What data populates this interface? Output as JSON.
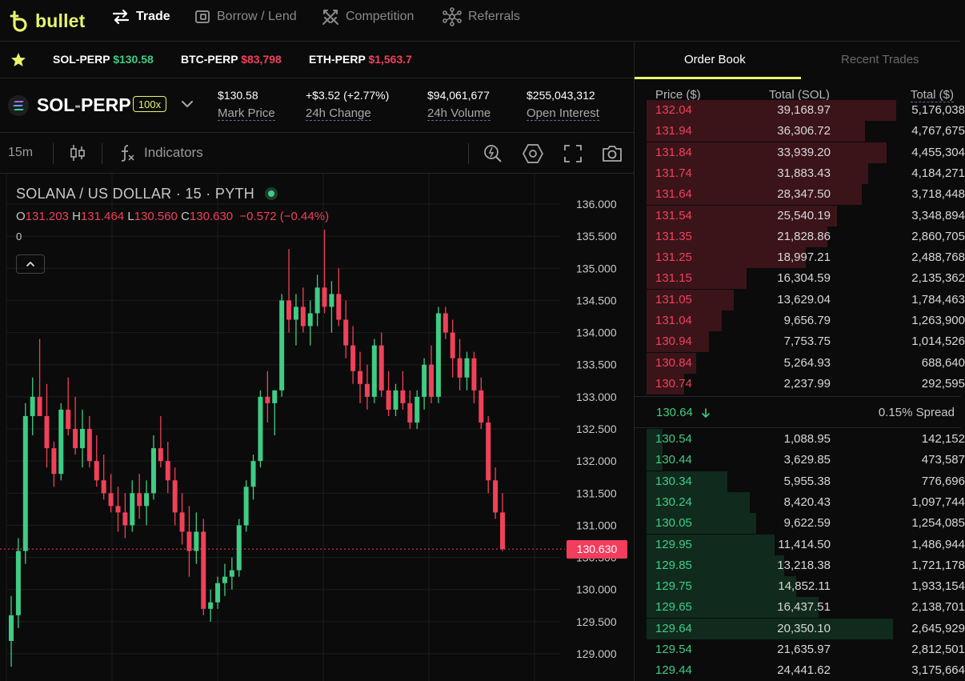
{
  "app": {
    "brand": "bullet"
  },
  "nav": {
    "items": [
      {
        "label": "Trade",
        "icon": "swap-arrows-icon",
        "active": true
      },
      {
        "label": "Borrow / Lend",
        "icon": "wallet-icon",
        "active": false
      },
      {
        "label": "Competition",
        "icon": "crossed-swords-icon",
        "active": false
      },
      {
        "label": "Referrals",
        "icon": "network-icon",
        "active": false
      }
    ]
  },
  "ticker": {
    "items": [
      {
        "symbol": "SOL-PERP",
        "price": "$130.58",
        "dir": "up"
      },
      {
        "symbol": "BTC-PERP",
        "price": "$83,798",
        "dir": "down"
      },
      {
        "symbol": "ETH-PERP",
        "price": "$1,563.7",
        "dir": "down"
      }
    ]
  },
  "market": {
    "symbol_base": "SOL",
    "symbol_sep": "-",
    "symbol_quote": "PERP",
    "leverage": "100x",
    "stats": [
      {
        "value": "$130.58",
        "label": "Mark Price",
        "dir": "neutral"
      },
      {
        "value": "+$3.52 (+2.77%)",
        "label": "24h Change",
        "dir": "up"
      },
      {
        "value": "$94,061,677",
        "label": "24h Volume",
        "dir": "neutral"
      },
      {
        "value": "$255,043,312",
        "label": "Open Interest",
        "dir": "neutral"
      }
    ]
  },
  "toolbar": {
    "interval": "15m",
    "indicators_label": "Indicators"
  },
  "chart": {
    "title": "SOLANA / US DOLLAR · 15 · PYTH",
    "ohlc": {
      "o_label": "O",
      "o": "131.203",
      "h_label": "H",
      "h": "131.464",
      "l_label": "L",
      "l": "130.560",
      "c_label": "C",
      "c": "130.630",
      "change": "−0.572 (−0.44%)"
    },
    "volume_label": "0",
    "price_tag": "130.630",
    "colors": {
      "up": "#3fcc85",
      "down": "#f0415a"
    }
  },
  "chart_data": {
    "type": "candlestick",
    "title": "SOLANA / US DOLLAR · 15 · PYTH",
    "ylim": [
      128.6,
      136.2
    ],
    "y_ticks": [
      "136.000",
      "135.500",
      "135.000",
      "134.500",
      "134.000",
      "133.500",
      "133.000",
      "132.500",
      "132.000",
      "131.500",
      "131.000",
      "130.500",
      "130.000",
      "129.500",
      "129.000"
    ],
    "last_price": 130.63,
    "candles": [
      [
        129.2,
        129.9,
        128.8,
        129.6
      ],
      [
        129.6,
        130.8,
        129.4,
        130.6
      ],
      [
        130.6,
        132.9,
        130.4,
        132.7
      ],
      [
        132.7,
        133.3,
        132.4,
        133.0
      ],
      [
        133.0,
        133.9,
        132.7,
        132.7
      ],
      [
        132.7,
        133.2,
        131.9,
        132.2
      ],
      [
        132.2,
        132.3,
        131.6,
        131.8
      ],
      [
        131.8,
        132.9,
        131.7,
        132.8
      ],
      [
        132.8,
        133.3,
        132.4,
        132.5
      ],
      [
        132.5,
        133.0,
        132.1,
        132.2
      ],
      [
        132.2,
        132.8,
        131.9,
        132.5
      ],
      [
        132.5,
        132.7,
        131.9,
        132.0
      ],
      [
        132.0,
        132.4,
        131.6,
        131.7
      ],
      [
        131.7,
        132.1,
        131.4,
        131.5
      ],
      [
        131.5,
        131.8,
        131.2,
        131.3
      ],
      [
        131.3,
        131.6,
        130.9,
        131.2
      ],
      [
        131.2,
        131.5,
        130.8,
        131.0
      ],
      [
        131.0,
        131.7,
        130.9,
        131.5
      ],
      [
        131.5,
        131.8,
        131.1,
        131.3
      ],
      [
        131.3,
        131.7,
        131.0,
        131.5
      ],
      [
        131.5,
        132.4,
        131.4,
        132.2
      ],
      [
        132.2,
        132.7,
        131.9,
        132.0
      ],
      [
        132.0,
        132.3,
        131.5,
        131.7
      ],
      [
        131.7,
        131.9,
        131.0,
        131.2
      ],
      [
        131.2,
        131.5,
        130.7,
        130.9
      ],
      [
        130.9,
        131.3,
        130.2,
        130.6
      ],
      [
        130.6,
        131.2,
        130.4,
        130.9
      ],
      [
        130.9,
        131.1,
        129.6,
        129.7
      ],
      [
        129.7,
        130.0,
        129.5,
        129.8
      ],
      [
        129.8,
        130.2,
        129.7,
        130.1
      ],
      [
        130.1,
        130.4,
        129.9,
        130.2
      ],
      [
        130.2,
        130.5,
        130.0,
        130.3
      ],
      [
        130.3,
        131.1,
        130.2,
        131.0
      ],
      [
        131.0,
        131.7,
        130.9,
        131.6
      ],
      [
        131.6,
        132.1,
        131.4,
        132.0
      ],
      [
        132.0,
        133.1,
        131.9,
        133.0
      ],
      [
        133.0,
        133.4,
        132.6,
        132.9
      ],
      [
        132.9,
        133.1,
        132.4,
        133.1
      ],
      [
        133.1,
        134.6,
        133.0,
        134.5
      ],
      [
        134.5,
        135.3,
        134.0,
        134.2
      ],
      [
        134.2,
        134.6,
        133.8,
        134.4
      ],
      [
        134.4,
        134.7,
        134.0,
        134.1
      ],
      [
        134.1,
        134.5,
        133.8,
        134.3
      ],
      [
        134.3,
        134.9,
        134.1,
        134.7
      ],
      [
        134.7,
        135.6,
        134.3,
        134.4
      ],
      [
        134.4,
        134.8,
        134.0,
        134.6
      ],
      [
        134.6,
        135.0,
        134.1,
        134.2
      ],
      [
        134.2,
        134.5,
        133.6,
        133.8
      ],
      [
        133.8,
        134.1,
        133.2,
        133.4
      ],
      [
        133.4,
        133.7,
        132.9,
        133.2
      ],
      [
        133.2,
        133.5,
        132.8,
        133.0
      ],
      [
        133.0,
        133.9,
        132.9,
        133.8
      ],
      [
        133.8,
        134.0,
        133.0,
        133.1
      ],
      [
        133.1,
        133.4,
        132.7,
        132.8
      ],
      [
        132.8,
        133.2,
        132.7,
        133.1
      ],
      [
        133.1,
        133.4,
        132.8,
        132.9
      ],
      [
        132.9,
        133.1,
        132.5,
        132.6
      ],
      [
        132.6,
        133.1,
        132.5,
        133.0
      ],
      [
        133.0,
        133.6,
        132.8,
        133.5
      ],
      [
        133.5,
        133.8,
        132.9,
        133.0
      ],
      [
        133.0,
        134.4,
        132.9,
        134.3
      ],
      [
        134.3,
        134.4,
        133.9,
        134.0
      ],
      [
        134.0,
        134.2,
        133.3,
        133.6
      ],
      [
        133.6,
        133.9,
        133.1,
        133.3
      ],
      [
        133.3,
        133.7,
        133.1,
        133.6
      ],
      [
        133.6,
        133.7,
        132.9,
        133.1
      ],
      [
        133.1,
        133.3,
        132.5,
        132.6
      ],
      [
        132.6,
        132.7,
        131.5,
        131.7
      ],
      [
        131.7,
        131.9,
        131.1,
        131.2
      ],
      [
        131.2,
        131.5,
        130.6,
        130.63
      ]
    ]
  },
  "book": {
    "tabs": [
      "Order Book",
      "Recent Trades"
    ],
    "headers": [
      "Price ($)",
      "Total (SOL)",
      "Total ($)"
    ],
    "asks": [
      {
        "price": "132.04",
        "total_sol": "39,168.97",
        "total_usd": "5,176,038",
        "depth": 0.8
      },
      {
        "price": "131.94",
        "total_sol": "36,306.72",
        "total_usd": "4,767,675",
        "depth": 0.7
      },
      {
        "price": "131.84",
        "total_sol": "33,939.20",
        "total_usd": "4,455,304",
        "depth": 0.77
      },
      {
        "price": "131.74",
        "total_sol": "31,883.43",
        "total_usd": "4,184,271",
        "depth": 0.71
      },
      {
        "price": "131.64",
        "total_sol": "28,347.50",
        "total_usd": "3,718,448",
        "depth": 0.69
      },
      {
        "price": "131.54",
        "total_sol": "25,540.19",
        "total_usd": "3,348,894",
        "depth": 0.61
      },
      {
        "price": "131.35",
        "total_sol": "21,828.86",
        "total_usd": "2,860,705",
        "depth": 0.58
      },
      {
        "price": "131.25",
        "total_sol": "18,997.21",
        "total_usd": "2,488,768",
        "depth": 0.51
      },
      {
        "price": "131.15",
        "total_sol": "16,304.59",
        "total_usd": "2,135,362",
        "depth": 0.32
      },
      {
        "price": "131.05",
        "total_sol": "13,629.04",
        "total_usd": "1,784,463",
        "depth": 0.28
      },
      {
        "price": "131.04",
        "total_sol": "9,656.79",
        "total_usd": "1,263,900",
        "depth": 0.24
      },
      {
        "price": "130.94",
        "total_sol": "7,753.75",
        "total_usd": "1,014,526",
        "depth": 0.2
      },
      {
        "price": "130.84",
        "total_sol": "5,264.93",
        "total_usd": "688,640",
        "depth": 0.16
      },
      {
        "price": "130.74",
        "total_sol": "2,237.99",
        "total_usd": "292,595",
        "depth": 0.12
      }
    ],
    "mid_price": "130.64",
    "spread": "0.15% Spread",
    "bids": [
      {
        "price": "130.54",
        "total_sol": "1,088.95",
        "total_usd": "142,152",
        "depth": 0.05
      },
      {
        "price": "130.44",
        "total_sol": "3,629.85",
        "total_usd": "473,587",
        "depth": 0.05
      },
      {
        "price": "130.34",
        "total_sol": "5,955.38",
        "total_usd": "776,696",
        "depth": 0.26
      },
      {
        "price": "130.24",
        "total_sol": "8,420.43",
        "total_usd": "1,097,744",
        "depth": 0.33
      },
      {
        "price": "130.05",
        "total_sol": "9,622.59",
        "total_usd": "1,254,085",
        "depth": 0.35
      },
      {
        "price": "129.95",
        "total_sol": "11,414.50",
        "total_usd": "1,486,944",
        "depth": 0.41
      },
      {
        "price": "129.85",
        "total_sol": "13,218.38",
        "total_usd": "1,721,178",
        "depth": 0.44
      },
      {
        "price": "129.75",
        "total_sol": "14,852.11",
        "total_usd": "1,933,154",
        "depth": 0.48
      },
      {
        "price": "129.65",
        "total_sol": "16,437.51",
        "total_usd": "2,138,701",
        "depth": 0.55
      },
      {
        "price": "129.64",
        "total_sol": "20,350.10",
        "total_usd": "2,645,929",
        "depth": 0.79
      },
      {
        "price": "129.54",
        "total_sol": "21,635.97",
        "total_usd": "2,812,501",
        "depth": 0
      },
      {
        "price": "129.44",
        "total_sol": "24,441.62",
        "total_usd": "3,175,664",
        "depth": 0
      }
    ]
  }
}
